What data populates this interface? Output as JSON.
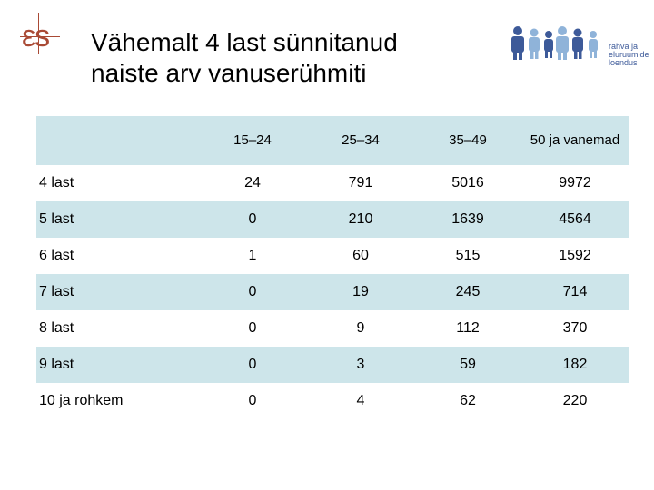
{
  "header": {
    "logo_text": "εs",
    "title_line1": "Vähemalt 4 last sünnitanud",
    "title_line2": "naiste arv vanuserühmiti",
    "brand_lines": [
      "rahva ja",
      "eluruumide",
      "loendus"
    ]
  },
  "colors": {
    "logo": "#a94a35",
    "row_shade": "#cde5ea",
    "brand_blue": "#3d5a99",
    "brand_light": "#8fb3d9"
  },
  "table": {
    "columns": [
      "15–24",
      "25–34",
      "35–49",
      "50 ja vanemad"
    ],
    "rows": [
      {
        "label": "4 last",
        "values": [
          "24",
          "791",
          "5016",
          "9972"
        ],
        "shaded": false
      },
      {
        "label": "5 last",
        "values": [
          "0",
          "210",
          "1639",
          "4564"
        ],
        "shaded": true
      },
      {
        "label": "6 last",
        "values": [
          "1",
          "60",
          "515",
          "1592"
        ],
        "shaded": false
      },
      {
        "label": "7 last",
        "values": [
          "0",
          "19",
          "245",
          "714"
        ],
        "shaded": true
      },
      {
        "label": "8 last",
        "values": [
          "0",
          "9",
          "112",
          "370"
        ],
        "shaded": false
      },
      {
        "label": "9 last",
        "values": [
          "0",
          "3",
          "59",
          "182"
        ],
        "shaded": true
      },
      {
        "label": "10 ja rohkem",
        "values": [
          "0",
          "4",
          "62",
          "220"
        ],
        "shaded": false
      }
    ]
  }
}
